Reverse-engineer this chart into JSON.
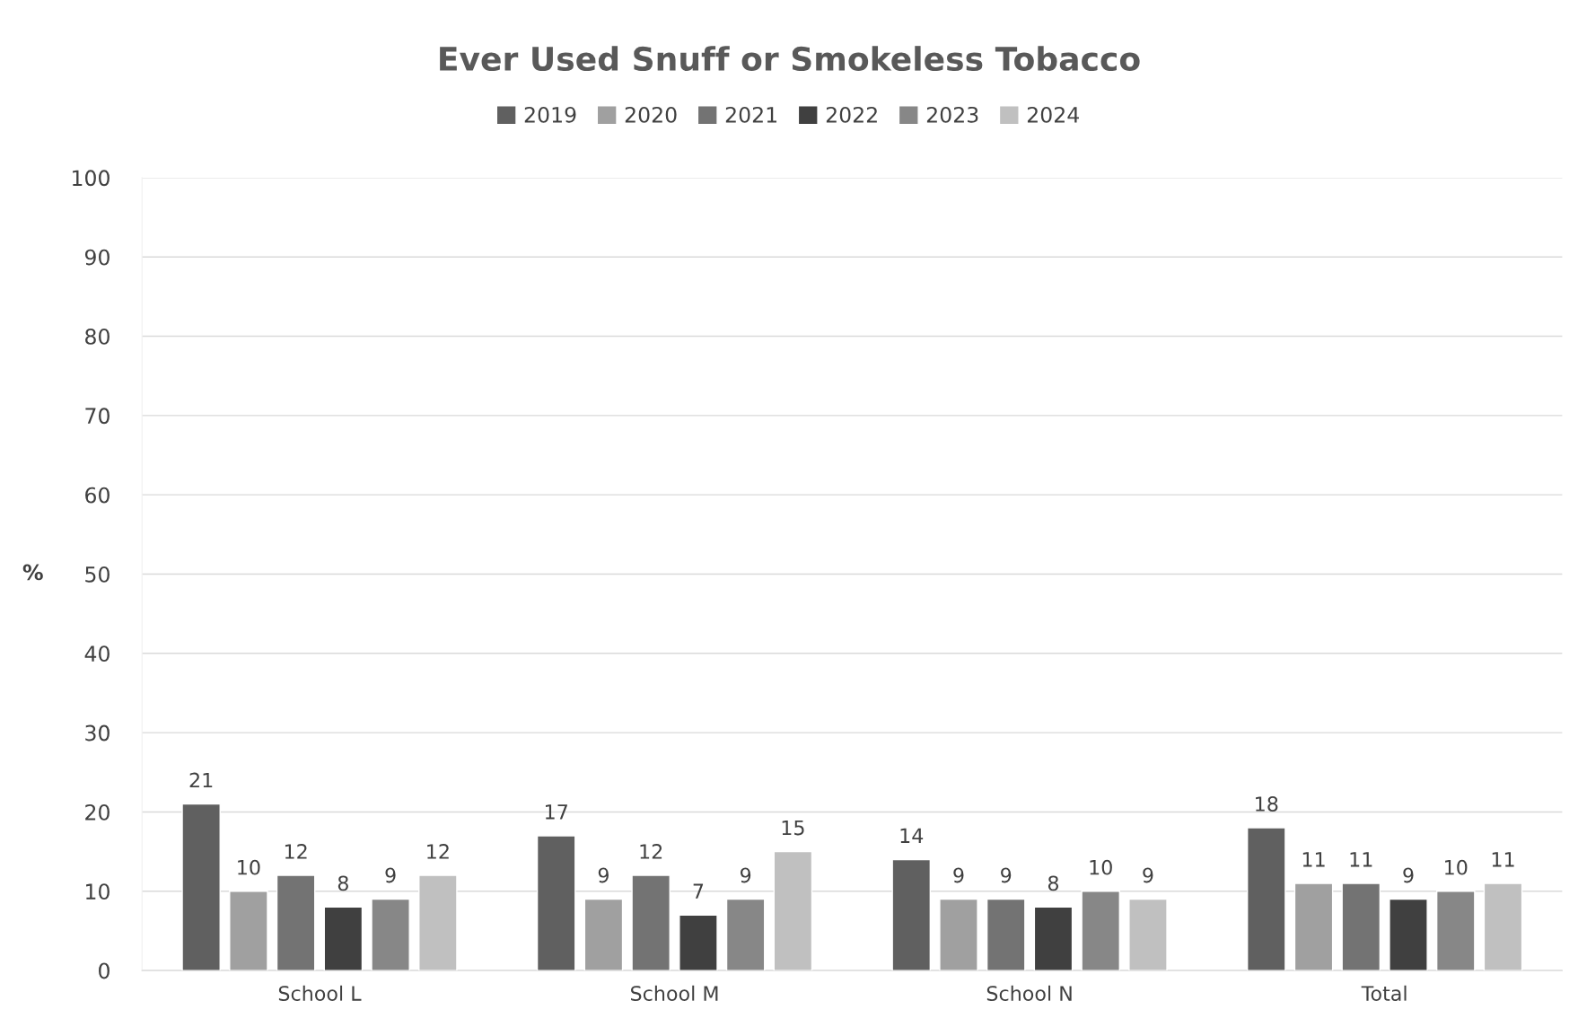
{
  "chart_data": {
    "type": "bar",
    "title": "Ever Used Snuff or Smokeless Tobacco",
    "ylabel": "%",
    "categories": [
      "School L",
      "School M",
      "School N",
      "Total"
    ],
    "series": [
      {
        "name": "2019",
        "color": "#606060",
        "values": [
          21,
          17,
          14,
          18
        ]
      },
      {
        "name": "2020",
        "color": "#a0a0a0",
        "values": [
          10,
          9,
          9,
          11
        ]
      },
      {
        "name": "2021",
        "color": "#737373",
        "values": [
          12,
          12,
          9,
          11
        ]
      },
      {
        "name": "2022",
        "color": "#404040",
        "values": [
          8,
          7,
          8,
          9
        ]
      },
      {
        "name": "2023",
        "color": "#878787",
        "values": [
          9,
          9,
          10,
          10
        ]
      },
      {
        "name": "2024",
        "color": "#c0c0c0",
        "values": [
          12,
          15,
          9,
          11
        ]
      }
    ],
    "ylim": [
      0,
      100
    ],
    "yticks": [
      0,
      10,
      20,
      30,
      40,
      50,
      60,
      70,
      80,
      90,
      100
    ],
    "grid": "y",
    "legend": "top",
    "data_labels": true
  }
}
